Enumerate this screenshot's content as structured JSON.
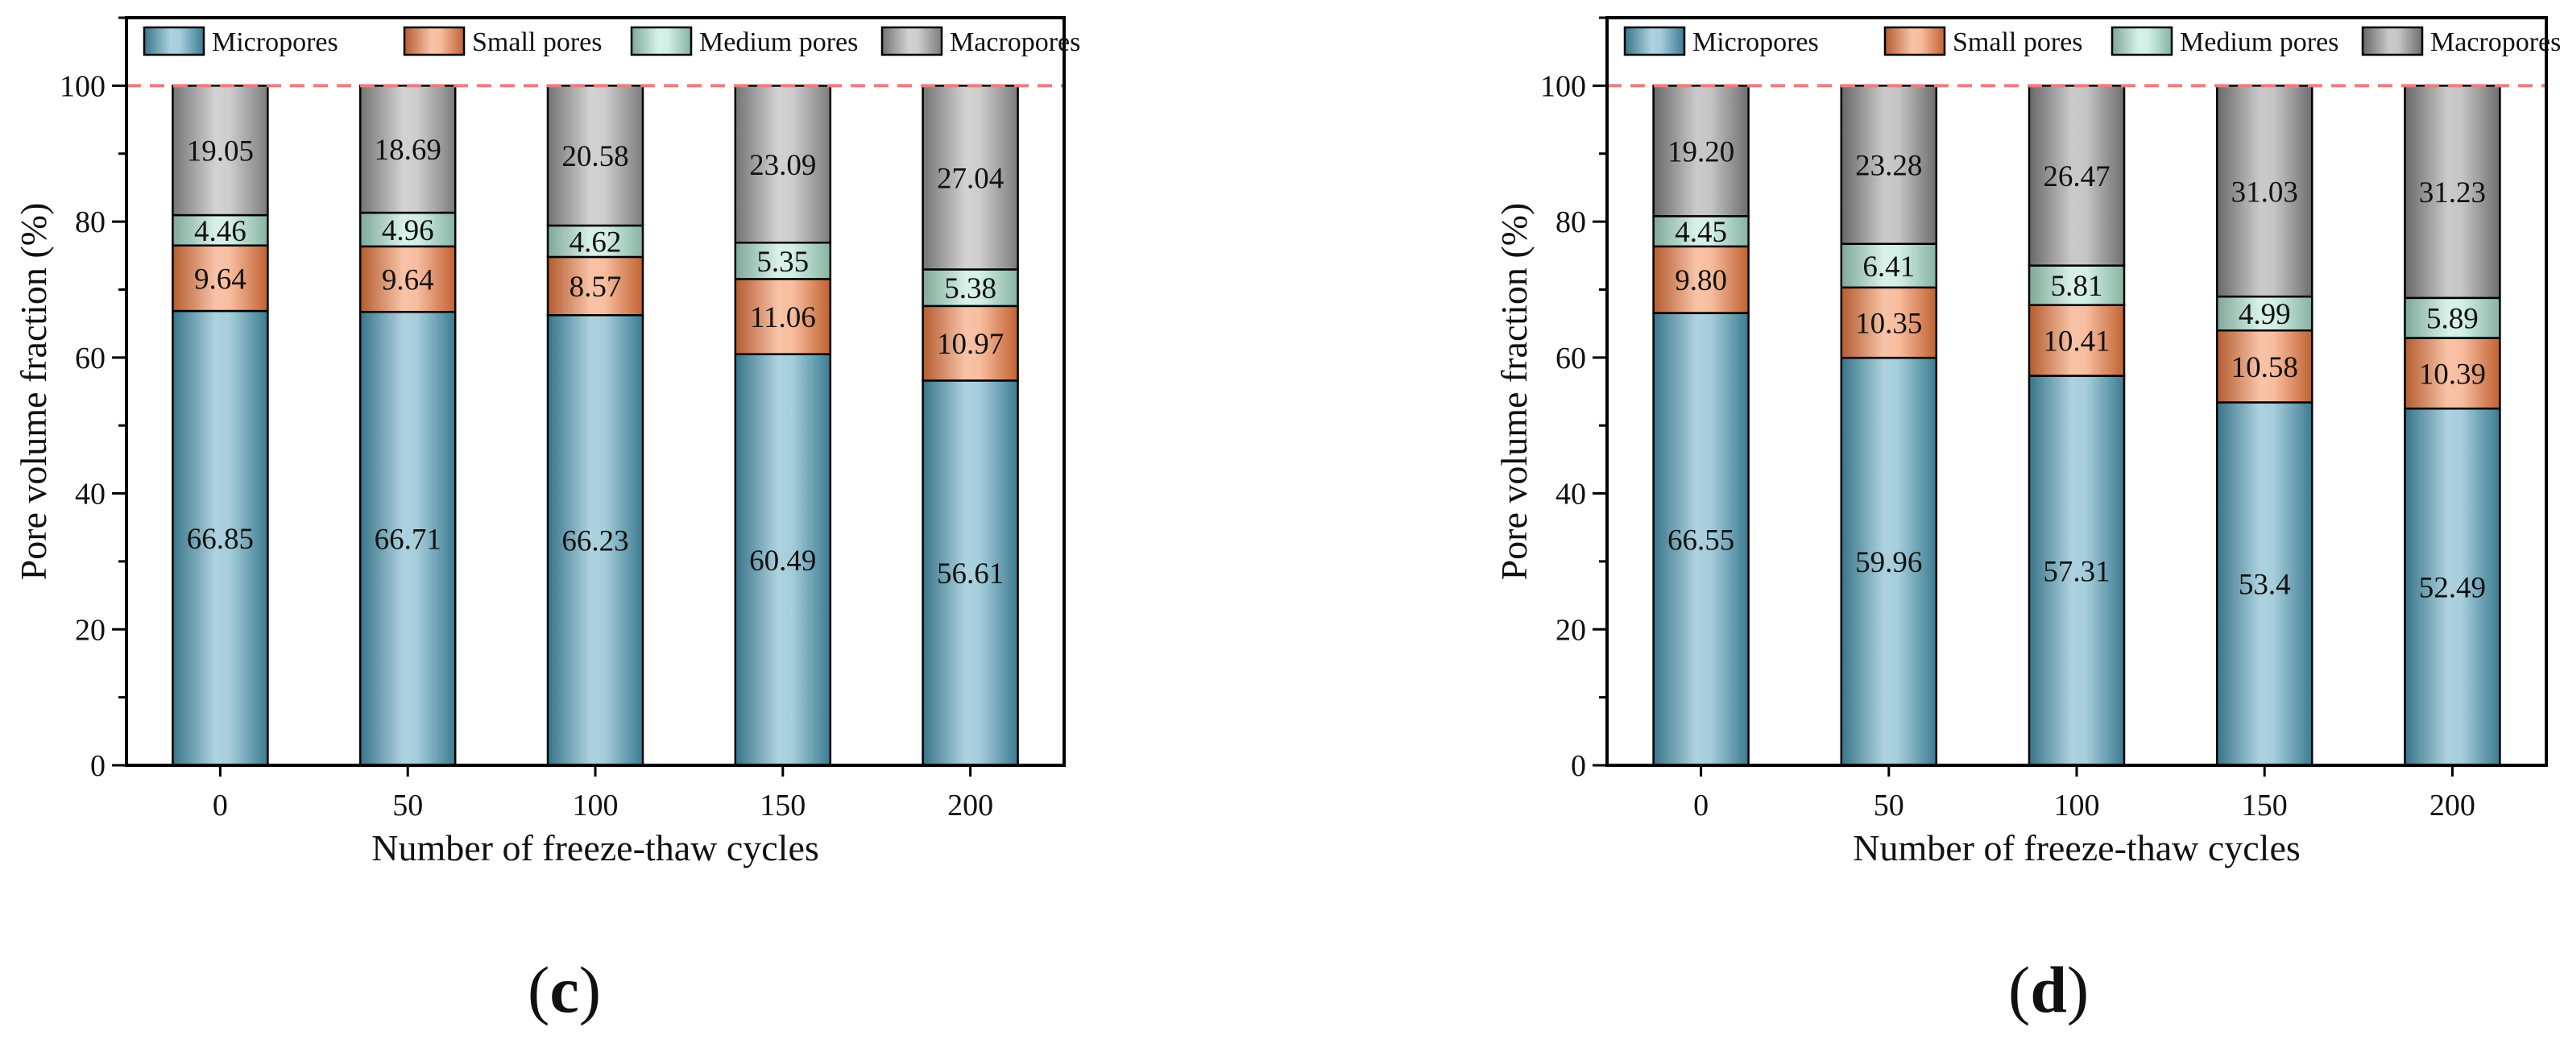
{
  "chart_data": [
    {
      "type": "bar",
      "stacked": true,
      "panel": "c",
      "categories": [
        "0",
        "50",
        "100",
        "150",
        "200"
      ],
      "series": [
        {
          "name": "Micropores",
          "color": "#4b9ab7",
          "values": [
            66.85,
            66.71,
            66.23,
            60.49,
            56.61
          ],
          "labels": [
            "66.85",
            "66.71",
            "66.23",
            "60.49",
            "56.61"
          ]
        },
        {
          "name": "Small pores",
          "color": "#f07a3e",
          "values": [
            9.64,
            9.64,
            8.57,
            11.06,
            10.97
          ],
          "labels": [
            "9.64",
            "9.64",
            "8.57",
            "11.06",
            "10.97"
          ]
        },
        {
          "name": "Medium pores",
          "color": "#a8e0cc",
          "values": [
            4.46,
            4.96,
            4.62,
            5.35,
            5.38
          ],
          "labels": [
            "4.46",
            "4.96",
            "4.62",
            "5.35",
            "5.38"
          ]
        },
        {
          "name": "Macropores",
          "color": "#9b9b9b",
          "values": [
            19.05,
            18.69,
            20.58,
            23.09,
            27.04
          ],
          "labels": [
            "19.05",
            "18.69",
            "20.58",
            "23.09",
            "27.04"
          ]
        }
      ],
      "xlabel": "Number of freeze-thaw cycles",
      "ylabel": "Pore volume fraction  (%)",
      "ylim": [
        0,
        110
      ],
      "yticks": [
        "0",
        "20",
        "40",
        "60",
        "80",
        "100"
      ],
      "reference_line": 100,
      "legend": "top",
      "grid": false
    },
    {
      "type": "bar",
      "stacked": true,
      "panel": "d",
      "categories": [
        "0",
        "50",
        "100",
        "150",
        "200"
      ],
      "series": [
        {
          "name": "Micropores",
          "color": "#4b9ab7",
          "values": [
            66.55,
            59.96,
            57.31,
            53.4,
            52.49
          ],
          "labels": [
            "66.55",
            "59.96",
            "57.31",
            "53.4",
            "52.49"
          ]
        },
        {
          "name": "Small pores",
          "color": "#f07a3e",
          "values": [
            9.8,
            10.35,
            10.41,
            10.58,
            10.39
          ],
          "labels": [
            "9.80",
            "10.35",
            "10.41",
            "10.58",
            "10.39"
          ]
        },
        {
          "name": "Medium pores",
          "color": "#a8e0cc",
          "values": [
            4.45,
            6.41,
            5.81,
            4.99,
            5.89
          ],
          "labels": [
            "4.45",
            "6.41",
            "5.81",
            "4.99",
            "5.89"
          ]
        },
        {
          "name": "Macropores",
          "color": "#8a8a8a",
          "values": [
            19.2,
            23.28,
            26.47,
            31.03,
            31.23
          ],
          "labels": [
            "19.20",
            "23.28",
            "26.47",
            "31.03",
            "31.23"
          ]
        }
      ],
      "xlabel": "Number of freeze-thaw cycles",
      "ylabel": "Pore volume fraction  (%)",
      "ylim": [
        0,
        110
      ],
      "yticks": [
        "0",
        "20",
        "40",
        "60",
        "80",
        "100"
      ],
      "reference_line": 100,
      "legend": "top",
      "grid": false
    }
  ],
  "panel_labels": [
    {
      "open": "(",
      "letter": "c",
      "close": ")"
    },
    {
      "open": "(",
      "letter": "d",
      "close": ")"
    }
  ]
}
